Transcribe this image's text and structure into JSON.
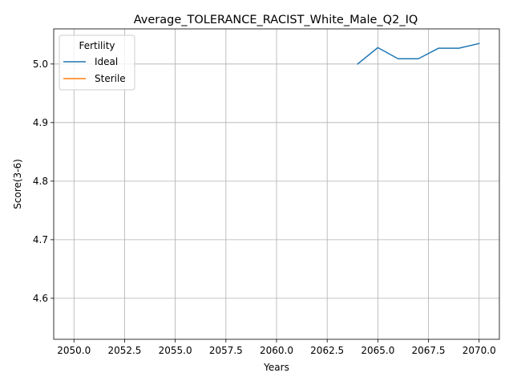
{
  "chart_data": {
    "type": "line",
    "title": "Average_TOLERANCE_RACIST_White_Male_Q2_IQ",
    "xlabel": "Years",
    "ylabel": "Score(3-6)",
    "xlim": [
      2049,
      2071
    ],
    "ylim": [
      4.53,
      5.06
    ],
    "xticks": [
      2050.0,
      2052.5,
      2055.0,
      2057.5,
      2060.0,
      2062.5,
      2065.0,
      2067.5,
      2070.0
    ],
    "xtick_labels": [
      "2050.0",
      "2052.5",
      "2055.0",
      "2057.5",
      "2060.0",
      "2062.5",
      "2065.0",
      "2067.5",
      "2070.0"
    ],
    "yticks": [
      4.6,
      4.7,
      4.8,
      4.9,
      5.0
    ],
    "ytick_labels": [
      "4.6",
      "4.7",
      "4.8",
      "4.9",
      "5.0"
    ],
    "grid": true,
    "legend": {
      "title": "Fertility",
      "placement": "top-left"
    },
    "series": [
      {
        "name": "Ideal",
        "color": "#1f77b4",
        "x": [
          2064,
          2065,
          2066,
          2067,
          2068,
          2069,
          2070
        ],
        "y": [
          5.0,
          5.028,
          5.009,
          5.009,
          5.027,
          5.027,
          5.035
        ]
      },
      {
        "name": "Sterile",
        "color": "#ff7f0e",
        "x": [],
        "y": []
      }
    ]
  }
}
